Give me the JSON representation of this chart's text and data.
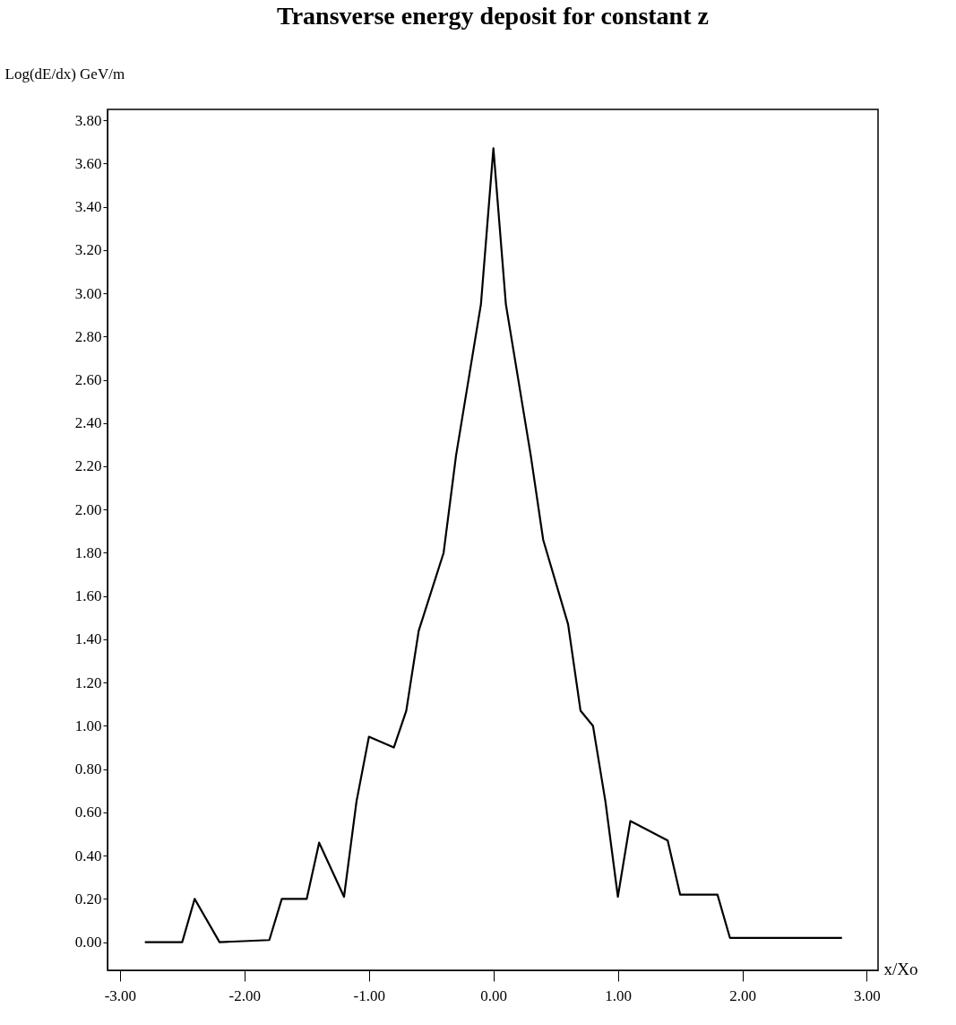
{
  "chart_data": {
    "type": "line",
    "title": "Transverse energy deposit for constant z",
    "xlabel": "x/Xo",
    "ylabel": "Log(dE/dx) GeV/m",
    "x": [
      -2.8,
      -2.5,
      -2.4,
      -2.2,
      -1.8,
      -1.7,
      -1.5,
      -1.4,
      -1.2,
      -1.1,
      -1.0,
      -0.8,
      -0.7,
      -0.6,
      -0.4,
      -0.3,
      -0.1,
      0.0,
      0.1,
      0.3,
      0.4,
      0.6,
      0.7,
      0.8,
      0.9,
      1.0,
      1.1,
      1.2,
      1.4,
      1.5,
      1.8,
      1.9,
      2.8
    ],
    "series": [
      {
        "color": "#000000",
        "values": [
          0,
          0,
          0.2,
          0,
          0.01,
          0.2,
          0.2,
          0.46,
          0.21,
          0.65,
          0.95,
          0.9,
          1.07,
          1.44,
          1.8,
          2.25,
          2.95,
          3.67,
          2.95,
          2.25,
          1.86,
          1.47,
          1.07,
          1.0,
          0.65,
          0.21,
          0.56,
          0.53,
          0.47,
          0.22,
          0.22,
          0.02,
          0.02
        ]
      }
    ],
    "xlim": [
      -3.1,
      3.09
    ],
    "ylim": [
      -0.13,
      3.85
    ],
    "xticks": [
      {
        "value": -3,
        "label": "-3.00"
      },
      {
        "value": -2,
        "label": "-2.00"
      },
      {
        "value": -1,
        "label": "-1.00"
      },
      {
        "value": 0,
        "label": "0.00"
      },
      {
        "value": 1,
        "label": "1.00"
      },
      {
        "value": 2,
        "label": "2.00"
      },
      {
        "value": 3,
        "label": "3.00"
      }
    ],
    "yticks": [
      {
        "value": 0,
        "label": "0.00"
      },
      {
        "value": 0.2,
        "label": "0.20"
      },
      {
        "value": 0.4,
        "label": "0.40"
      },
      {
        "value": 0.6,
        "label": "0.60"
      },
      {
        "value": 0.8,
        "label": "0.80"
      },
      {
        "value": 1,
        "label": "1.00"
      },
      {
        "value": 1.2,
        "label": "1.20"
      },
      {
        "value": 1.4,
        "label": "1.40"
      },
      {
        "value": 1.6,
        "label": "1.60"
      },
      {
        "value": 1.8,
        "label": "1.80"
      },
      {
        "value": 2,
        "label": "2.00"
      },
      {
        "value": 2.2,
        "label": "2.20"
      },
      {
        "value": 2.4,
        "label": "2.40"
      },
      {
        "value": 2.6,
        "label": "2.60"
      },
      {
        "value": 2.8,
        "label": "2.80"
      },
      {
        "value": 3,
        "label": "3.00"
      },
      {
        "value": 3.2,
        "label": "3.20"
      },
      {
        "value": 3.4,
        "label": "3.40"
      },
      {
        "value": 3.6,
        "label": "3.60"
      },
      {
        "value": 3.8,
        "label": "3.80"
      }
    ],
    "grid": false,
    "marker": "none",
    "line_style": "solid"
  }
}
